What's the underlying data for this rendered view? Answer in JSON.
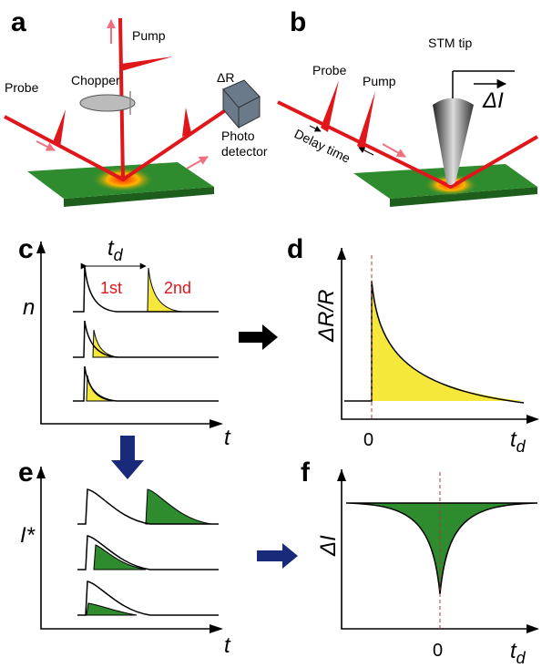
{
  "panels": {
    "a": {
      "label": "a",
      "pump": "Pump",
      "probe": "Probe",
      "chopper": "Chopper",
      "delta_r": "ΔR",
      "detector": [
        "Photo",
        "detector"
      ]
    },
    "b": {
      "label": "b",
      "stm_tip": "STM tip",
      "delta_i": "ΔI",
      "probe": "Probe",
      "pump": "Pump",
      "delay": "Delay time"
    },
    "c": {
      "label": "c",
      "td": {
        "base": "t",
        "sub": "d"
      },
      "first": "1st",
      "second": "2nd",
      "ylabel": "n",
      "xlabel": "t"
    },
    "d": {
      "label": "d",
      "ylabel": "ΔR/R",
      "zero": "0",
      "xlabel": {
        "base": "t",
        "sub": "d"
      }
    },
    "e": {
      "label": "e",
      "ylabel": "I*",
      "xlabel": "t"
    },
    "f": {
      "label": "f",
      "ylabel": "ΔI",
      "zero": "0",
      "xlabel": {
        "base": "t",
        "sub": "d"
      }
    }
  }
}
